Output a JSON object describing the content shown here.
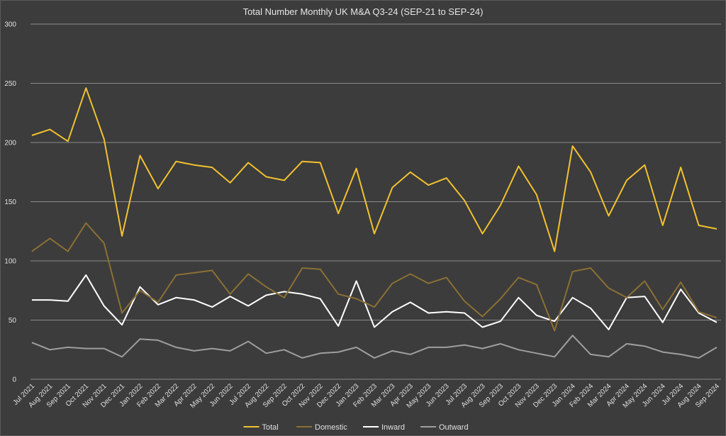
{
  "chart_data": {
    "type": "line",
    "title": "Total Number Monthly UK M&A Q3-24 (SEP-21 to SEP-24)",
    "xlabel": "",
    "ylabel": "",
    "ylim": [
      0,
      300
    ],
    "yticks": [
      0,
      50,
      100,
      150,
      200,
      250,
      300
    ],
    "grid": true,
    "legend_position": "bottom",
    "categories": [
      "Jul 2021",
      "Aug 2021",
      "Sep 2021",
      "Oct 2021",
      "Nov 2021",
      "Dec 2021",
      "Jan 2022",
      "Feb 2022",
      "Mar 2022",
      "Apr 2022",
      "May 2022",
      "Jun 2022",
      "Jul 2022",
      "Aug 2022",
      "Sep 2022",
      "Oct 2022",
      "Nov 2022",
      "Dec 2022",
      "Jan 2023",
      "Feb 2023",
      "Mar 2023",
      "Apr 2023",
      "May 2023",
      "Jun 2023",
      "Jul 2023",
      "Aug 2023",
      "Sep 2023",
      "Oct 2023",
      "Nov 2023",
      "Dec 2023",
      "Jan 2024",
      "Feb 2024",
      "Mar 2024",
      "Apr 2024",
      "May 2024",
      "Jun 2024",
      "Jul 2024",
      "Aug 2024",
      "Sep 2024"
    ],
    "series": [
      {
        "name": "Total",
        "color": "#f2c12e",
        "values": [
          206,
          211,
          201,
          246,
          203,
          121,
          189,
          161,
          184,
          181,
          179,
          166,
          183,
          171,
          168,
          184,
          183,
          140,
          178,
          123,
          162,
          175,
          164,
          170,
          151,
          123,
          147,
          180,
          156,
          108,
          197,
          175,
          138,
          168,
          181,
          130,
          179,
          130,
          127
        ]
      },
      {
        "name": "Domestic",
        "color": "#8b7035",
        "values": [
          108,
          119,
          108,
          132,
          115,
          56,
          75,
          65,
          88,
          90,
          92,
          72,
          89,
          78,
          69,
          94,
          93,
          72,
          68,
          61,
          81,
          89,
          81,
          86,
          66,
          53,
          68,
          86,
          80,
          41,
          91,
          94,
          77,
          69,
          83,
          59,
          82,
          57,
          52
        ]
      },
      {
        "name": "Inward",
        "color": "#ffffff",
        "values": [
          67,
          67,
          66,
          88,
          62,
          46,
          78,
          63,
          69,
          67,
          61,
          70,
          62,
          71,
          74,
          72,
          68,
          45,
          83,
          44,
          57,
          65,
          56,
          57,
          56,
          44,
          49,
          69,
          54,
          49,
          69,
          60,
          42,
          69,
          70,
          48,
          76,
          56,
          48
        ]
      },
      {
        "name": "Outward",
        "color": "#9e9e9e",
        "values": [
          31,
          25,
          27,
          26,
          26,
          19,
          34,
          33,
          27,
          24,
          26,
          24,
          32,
          22,
          25,
          18,
          22,
          23,
          27,
          18,
          24,
          21,
          27,
          27,
          29,
          26,
          30,
          25,
          22,
          19,
          37,
          21,
          19,
          30,
          28,
          23,
          21,
          18,
          27
        ]
      }
    ]
  }
}
